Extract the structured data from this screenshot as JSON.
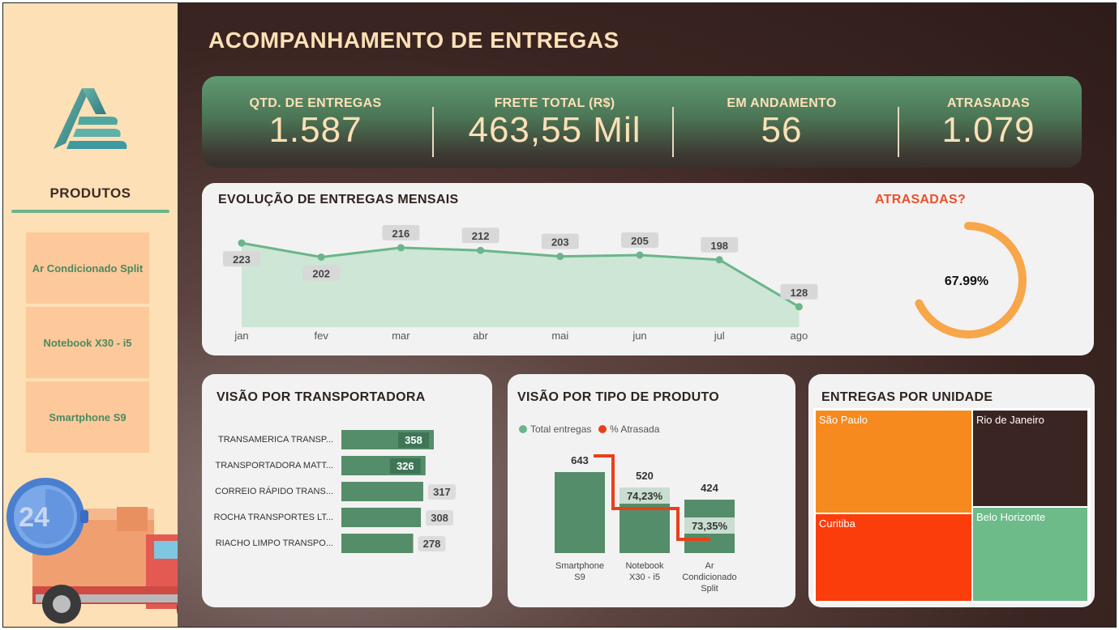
{
  "header": {
    "title": "ACOMPANHAMENTO DE ENTREGAS"
  },
  "sidebar": {
    "title": "PRODUTOS",
    "items": [
      {
        "label": "Ar Condicionado Split"
      },
      {
        "label": "Notebook X30 - i5"
      },
      {
        "label": "Smartphone S9"
      }
    ],
    "clock_number": "24"
  },
  "kpis": [
    {
      "label": "QTD. DE ENTREGAS",
      "value": "1.587"
    },
    {
      "label": "FRETE TOTAL (R$)",
      "value": "463,55 Mil"
    },
    {
      "label": "EM ANDAMENTO",
      "value": "56"
    },
    {
      "label": "ATRASADAS",
      "value": "1.079"
    }
  ],
  "colors": {
    "accent_green": "#6bb58a",
    "dark_green": "#548d69",
    "orange": "#f7a64a",
    "red_orange": "#e8512a",
    "cream": "#fde0b6",
    "brown": "#3b2522"
  },
  "chart_data": [
    {
      "type": "area",
      "title": "EVOLUÇÃO DE ENTREGAS MENSAIS",
      "categories": [
        "jan",
        "fev",
        "mar",
        "abr",
        "mai",
        "jun",
        "jul",
        "ago"
      ],
      "values": [
        223,
        202,
        216,
        212,
        203,
        205,
        198,
        128
      ]
    },
    {
      "type": "pie",
      "title": "ATRASADAS?",
      "value_label": "67.99%",
      "values": [
        67.99,
        32.01
      ]
    },
    {
      "type": "bar",
      "title": "VISÃO POR TRANSPORTADORA",
      "categories": [
        "TRANSAMERICA TRANSP...",
        "TRANSPORTADORA MATT...",
        "CORREIO RÁPIDO TRANS...",
        "ROCHA TRANSPORTES LT...",
        "RIACHO LIMPO TRANSPO..."
      ],
      "values": [
        358,
        326,
        317,
        308,
        278
      ]
    },
    {
      "type": "bar",
      "title": "VISÃO POR TIPO DE PRODUTO",
      "categories": [
        "Smartphone S9",
        "Notebook X30 - i5",
        "Ar Condicionado Split"
      ],
      "series": [
        {
          "name": "Total entregas",
          "values": [
            643,
            520,
            424
          ]
        },
        {
          "name": "% Atrasada",
          "values": [
            null,
            74.23,
            73.35
          ],
          "labels": [
            "",
            "74,23%",
            "73,35%"
          ]
        }
      ]
    },
    {
      "type": "heatmap",
      "title": "ENTREGAS POR UNIDADE",
      "categories": [
        "São Paulo",
        "Rio de Janeiro",
        "Curitiba",
        "Belo Horizonte"
      ]
    }
  ]
}
